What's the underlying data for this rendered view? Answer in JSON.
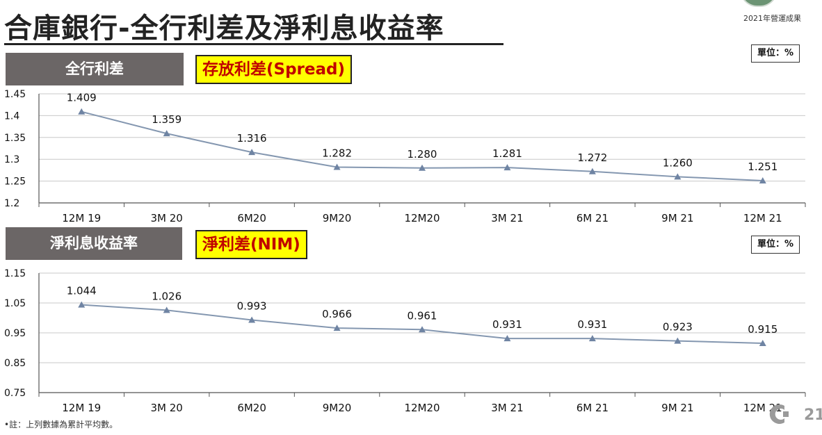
{
  "header": {
    "title": "合庫銀行-全行利差及淨利息收益率",
    "logo_caption": "2021年營運成果"
  },
  "footnote": "•註：上列數據為累計平均數。",
  "corner_logo_text": "21",
  "colors": {
    "line": "#8497b0",
    "label_bg": "#6b6666",
    "tag_bg": "#ffff00",
    "tag_text": "#c00000"
  },
  "charts": [
    {
      "section_label": "全行利差",
      "tag": "存放利差(Spread)",
      "unit": "單位：%"
    },
    {
      "section_label": "淨利息收益率",
      "tag": "淨利差(NIM)",
      "unit": "單位：%"
    }
  ],
  "chart_data": [
    {
      "type": "line",
      "categories": [
        "12M 19",
        "3M 20",
        "6M20",
        "9M20",
        "12M20",
        "3M 21",
        "6M 21",
        "9M 21",
        "12M 21"
      ],
      "values": [
        1.409,
        1.359,
        1.316,
        1.282,
        1.28,
        1.281,
        1.272,
        1.26,
        1.251
      ],
      "value_labels": [
        "1.409",
        "1.359",
        "1.316",
        "1.282",
        "1.280",
        "1.281",
        "1.272",
        "1.260",
        "1.251"
      ],
      "ylim": [
        1.2,
        1.45
      ],
      "yticks": [
        "1.2",
        "1.25",
        "1.3",
        "1.35",
        "1.4",
        "1.45"
      ],
      "grid": true,
      "marker": "triangle"
    },
    {
      "type": "line",
      "categories": [
        "12M 19",
        "3M 20",
        "6M20",
        "9M20",
        "12M20",
        "3M 21",
        "6M 21",
        "9M 21",
        "12M 21"
      ],
      "values": [
        1.044,
        1.026,
        0.993,
        0.966,
        0.961,
        0.931,
        0.931,
        0.923,
        0.915
      ],
      "value_labels": [
        "1.044",
        "1.026",
        "0.993",
        "0.966",
        "0.961",
        "0.931",
        "0.931",
        "0.923",
        "0.915"
      ],
      "ylim": [
        0.75,
        1.15
      ],
      "yticks": [
        "0.75",
        "0.85",
        "0.95",
        "1.05",
        "1.15"
      ],
      "grid": true,
      "marker": "triangle"
    }
  ]
}
